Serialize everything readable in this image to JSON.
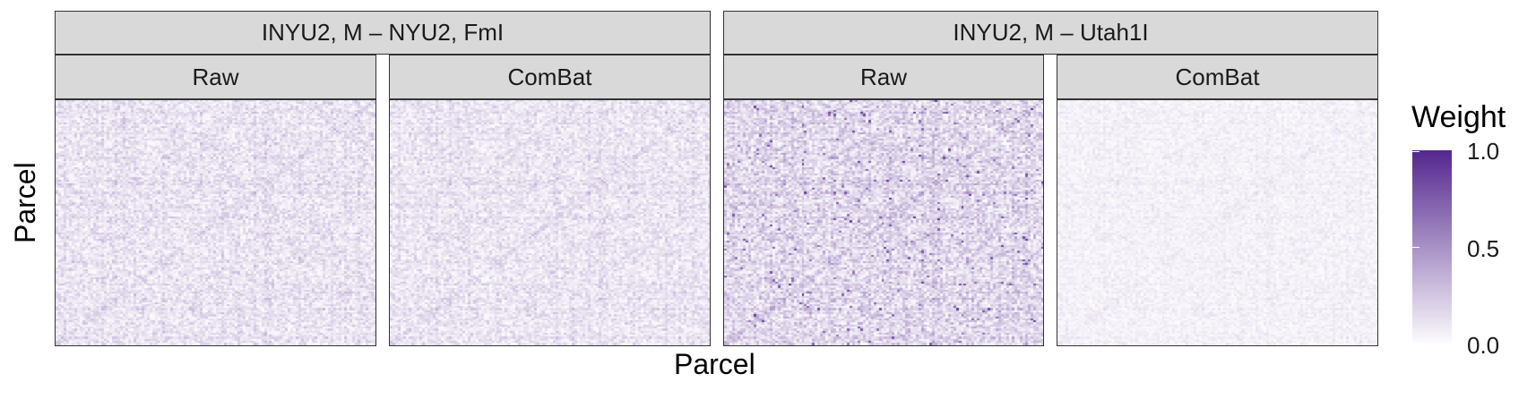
{
  "chart_data": {
    "type": "heatmap",
    "xlabel": "Parcel",
    "ylabel": "Parcel",
    "facets": [
      {
        "label": "INYU2, M – NYU2, FmI",
        "panels": [
          {
            "label": "Raw",
            "mean_weight": 0.16
          },
          {
            "label": "ComBat",
            "mean_weight": 0.15
          }
        ]
      },
      {
        "label": "INYU2, M – Utah1I",
        "panels": [
          {
            "label": "Raw",
            "mean_weight": 0.24
          },
          {
            "label": "ComBat",
            "mean_weight": 0.07
          }
        ]
      }
    ],
    "legend": {
      "title": "Weight",
      "min": 0.0,
      "max": 1.0,
      "ticks": [
        "0.0",
        "0.5",
        "1.0"
      ],
      "color_low": "#fcfbfd",
      "color_high": "#54278f",
      "placement": "right"
    }
  }
}
